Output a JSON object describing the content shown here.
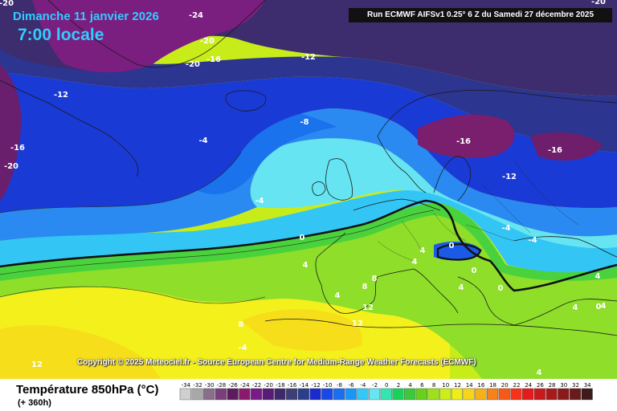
{
  "header": {
    "date": "Dimanche 11 janvier 2026",
    "time": "7:00 locale",
    "run_info": "Run ECMWF AIFSv1 0.25° 6 Z du Samedi 27 décembre 2025"
  },
  "copyright": "Copyright © 2025 Meteociel.fr - Source European Centre for Medium-Range Weather Forecasts (ECMWF)",
  "footer": {
    "variable": "Température 850hPa (°C)",
    "lead_time": "(+ 360h)"
  },
  "legend": {
    "ticks": [
      "-34",
      "-32",
      "-30",
      "-28",
      "-26",
      "-24",
      "-22",
      "-20",
      "-18",
      "-16",
      "-14",
      "-12",
      "-10",
      "-8",
      "-6",
      "-4",
      "-2",
      "0",
      "2",
      "4",
      "6",
      "8",
      "10",
      "12",
      "14",
      "16",
      "18",
      "20",
      "22",
      "24",
      "26",
      "28",
      "30",
      "32",
      "34"
    ],
    "colors": [
      "#cfcfcf",
      "#a8a8a8",
      "#8a6f8a",
      "#7a3e7a",
      "#5e1a5e",
      "#8a1a6e",
      "#7a1a8a",
      "#5a1a78",
      "#3e2a6a",
      "#3e3e78",
      "#2a3e8a",
      "#1a2acc",
      "#1a48e6",
      "#1a6ef2",
      "#1a96f6",
      "#33c8f6",
      "#66e6f2",
      "#33e6b0",
      "#1ad25a",
      "#3ec83e",
      "#66d21a",
      "#9ee01a",
      "#ccee1a",
      "#eeee1a",
      "#f6d61a",
      "#f6b01a",
      "#f6821a",
      "#f65a1a",
      "#f6321a",
      "#e61a1a",
      "#c81a1a",
      "#a81a1a",
      "#8a1a1a",
      "#6a1a1a",
      "#3e1a1a"
    ]
  },
  "map_labels": [
    {
      "text": "-24"
    },
    {
      "text": "-20"
    },
    {
      "text": "-20"
    },
    {
      "text": "-20"
    },
    {
      "text": "-16"
    },
    {
      "text": "-12"
    },
    {
      "text": "-12"
    },
    {
      "text": "-16"
    },
    {
      "text": "-20"
    },
    {
      "text": "-8"
    },
    {
      "text": "-4"
    },
    {
      "text": "-4"
    },
    {
      "text": "0"
    },
    {
      "text": "4"
    },
    {
      "text": "-16"
    },
    {
      "text": "-16"
    },
    {
      "text": "-12"
    },
    {
      "text": "-4"
    },
    {
      "text": "-4"
    },
    {
      "text": "0"
    },
    {
      "text": "0"
    },
    {
      "text": "0"
    },
    {
      "text": "4"
    },
    {
      "text": "4"
    },
    {
      "text": "4"
    },
    {
      "text": "4"
    },
    {
      "text": "8"
    },
    {
      "text": "8"
    },
    {
      "text": "12"
    },
    {
      "text": "12"
    },
    {
      "text": "8"
    },
    {
      "text": "-4"
    },
    {
      "text": "12"
    },
    {
      "text": "4"
    },
    {
      "text": "4"
    },
    {
      "text": "4"
    },
    {
      "text": "0"
    },
    {
      "text": "-20"
    },
    {
      "text": "4"
    }
  ]
}
